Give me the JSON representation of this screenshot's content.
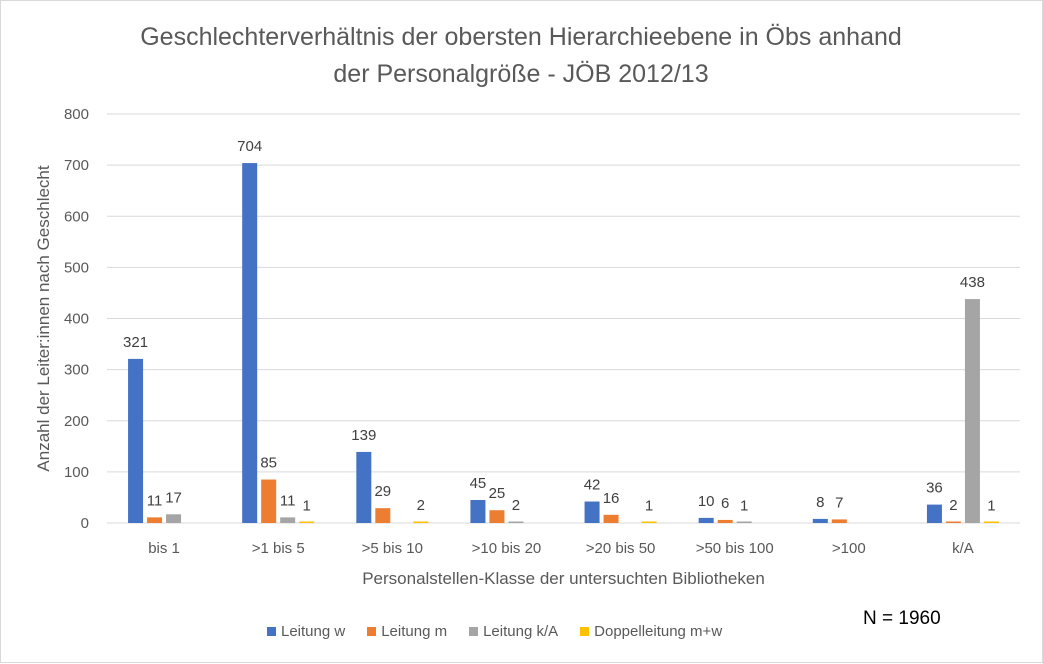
{
  "chart_data": {
    "type": "bar",
    "title": "Geschlechterverhältnis der obersten Hierarchieebene in Öbs anhand der Personalgröße - JÖB 2012/13",
    "title_lines": [
      "Geschlechterverhältnis der obersten Hierarchieebene in Öbs anhand",
      "der Personalgröße - JÖB 2012/13"
    ],
    "xlabel": "Personalstellen-Klasse der untersuchten Bibliotheken",
    "ylabel": "Anzahl der Leiter:innen  nach Geschlecht",
    "ylim": [
      0,
      800
    ],
    "yticks": [
      0,
      100,
      200,
      300,
      400,
      500,
      600,
      700,
      800
    ],
    "grid": true,
    "legend_position": "bottom",
    "categories": [
      "bis 1",
      ">1 bis 5",
      ">5 bis 10",
      ">10 bis 20",
      ">20 bis 50",
      ">50 bis 100",
      ">100",
      "k/A"
    ],
    "series": [
      {
        "name": "Leitung w",
        "color": "#4472c4",
        "values": [
          321,
          704,
          139,
          45,
          42,
          10,
          8,
          36
        ]
      },
      {
        "name": "Leitung m",
        "color": "#ed7d31",
        "values": [
          11,
          85,
          29,
          25,
          16,
          6,
          7,
          2
        ]
      },
      {
        "name": "Leitung k/A",
        "color": "#a5a5a5",
        "values": [
          17,
          11,
          null,
          2,
          null,
          1,
          null,
          438
        ]
      },
      {
        "name": "Doppelleitung m+w",
        "color": "#ffc000",
        "values": [
          null,
          1,
          2,
          null,
          1,
          null,
          null,
          1
        ]
      }
    ],
    "note": "N = 1960"
  }
}
